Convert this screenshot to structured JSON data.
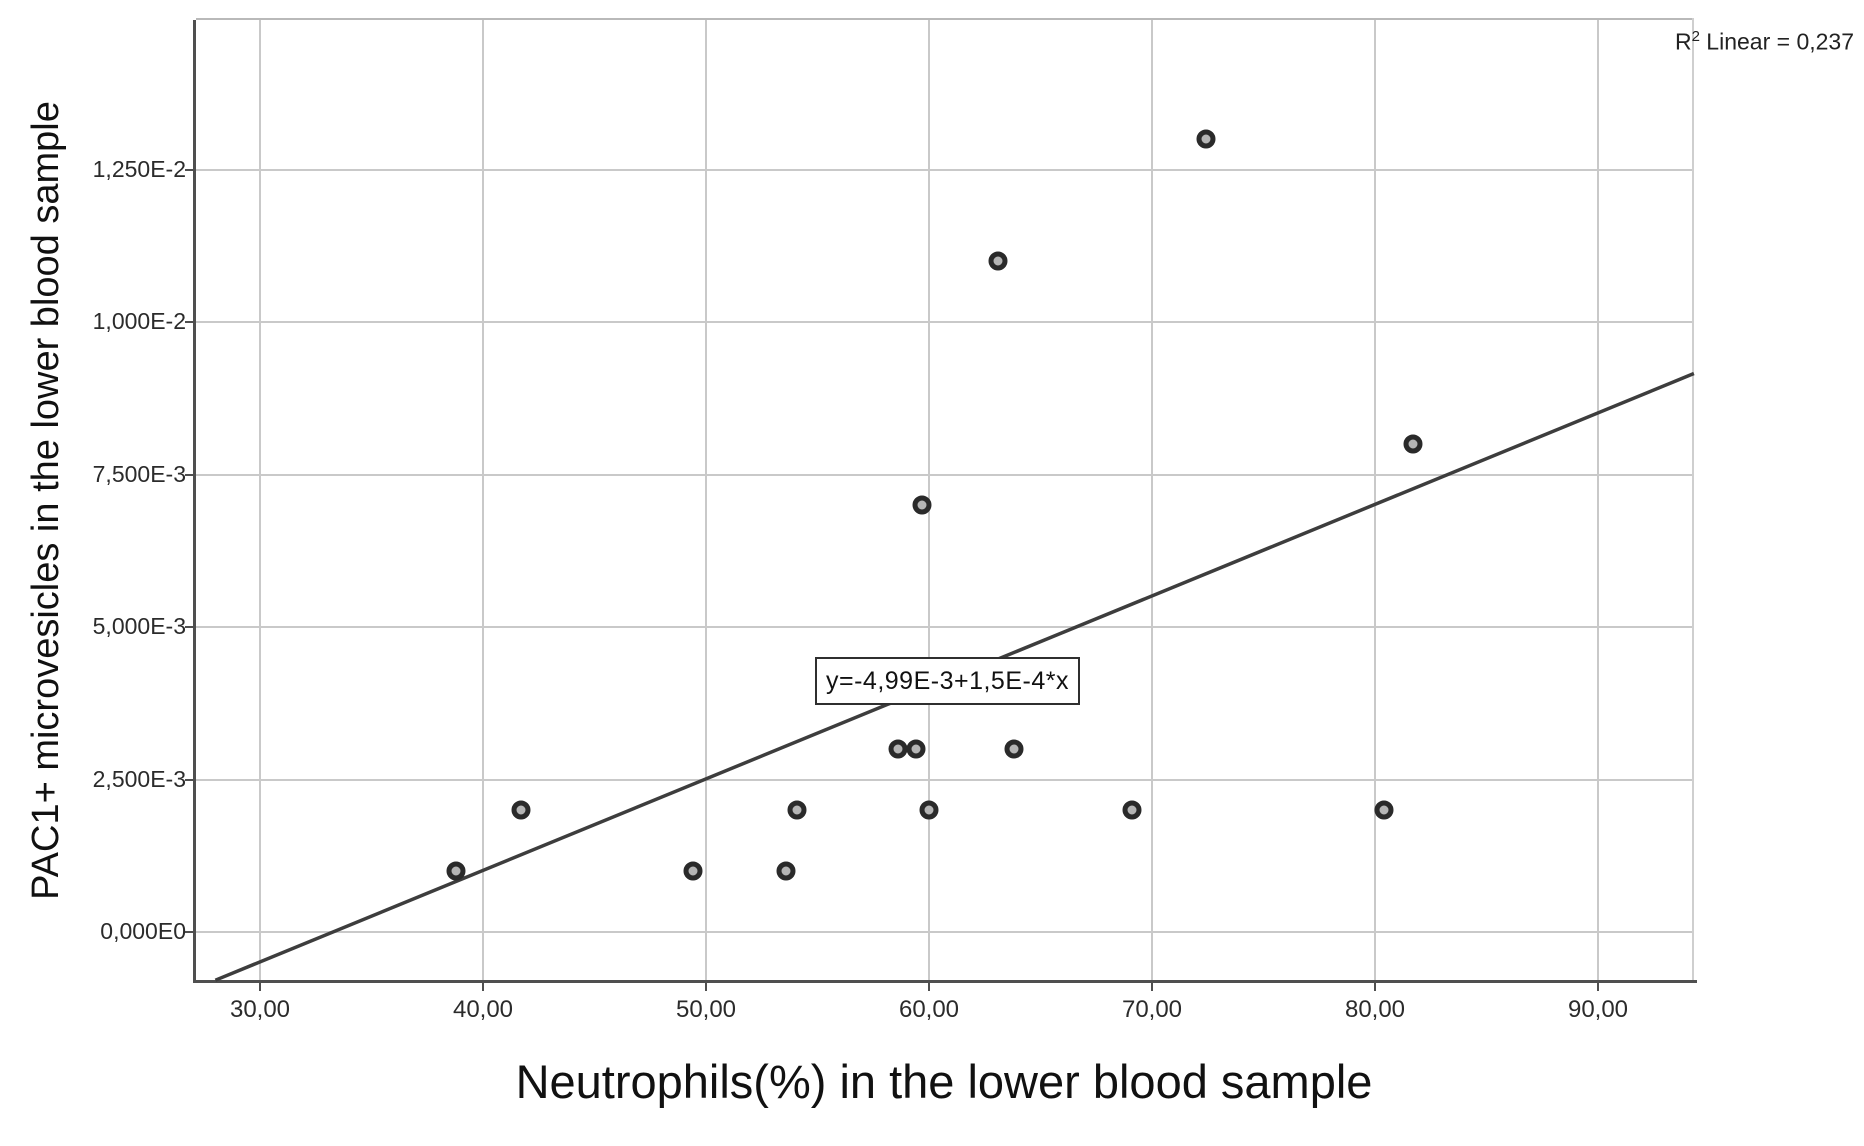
{
  "chart_data": {
    "type": "scatter",
    "title": "",
    "xlabel": "Neutrophils(%) in the lower blood sample",
    "ylabel": "PAC1+ microvesicles in the lower blood sample",
    "r2_annotation": {
      "prefix": "R",
      "sup": "2",
      "rest": " Linear = 0,237"
    },
    "equation_label": "y=-4,99E-3+1,5E-4*x",
    "x_axis": {
      "min": 27.1,
      "max": 94.3,
      "ticks": [
        30,
        40,
        50,
        60,
        70,
        80,
        90
      ],
      "tick_labels": [
        "30,00",
        "40,00",
        "50,00",
        "60,00",
        "70,00",
        "80,00",
        "90,00"
      ]
    },
    "y_axis": {
      "min": -0.00079,
      "max": 0.01495,
      "ticks": [
        0,
        0.0025,
        0.005,
        0.0075,
        0.01,
        0.0125
      ],
      "tick_labels": [
        "0,000E0",
        "2,500E-3",
        "5,000E-3",
        "7,500E-3",
        "1,000E-2",
        "1,250E-2"
      ]
    },
    "grid": true,
    "legend": "none",
    "points": [
      [
        38.8,
        0.001
      ],
      [
        41.7,
        0.002
      ],
      [
        49.4,
        0.001
      ],
      [
        53.6,
        0.001
      ],
      [
        54.1,
        0.002
      ],
      [
        58.6,
        0.003
      ],
      [
        59.4,
        0.003
      ],
      [
        59.7,
        0.007
      ],
      [
        60.0,
        0.002
      ],
      [
        63.1,
        0.011
      ],
      [
        63.8,
        0.003
      ],
      [
        69.1,
        0.002
      ],
      [
        72.4,
        0.013
      ],
      [
        80.4,
        0.002
      ],
      [
        81.7,
        0.008
      ]
    ],
    "trendline": {
      "equation": "y=-4,99E-3+1,5E-4*x",
      "intercept": -0.00499,
      "slope": 0.00015,
      "x_start": 28.0,
      "x_end": 94.3,
      "r2": 0.237
    },
    "colors": {
      "marker_fill": "#b5b5b5",
      "marker_edge": "#2a2a2a",
      "trend_line": "#3d3d3d",
      "grid": "#c9c9c9",
      "axis": "#4f4f4f",
      "text": "#1a1a1a"
    }
  }
}
